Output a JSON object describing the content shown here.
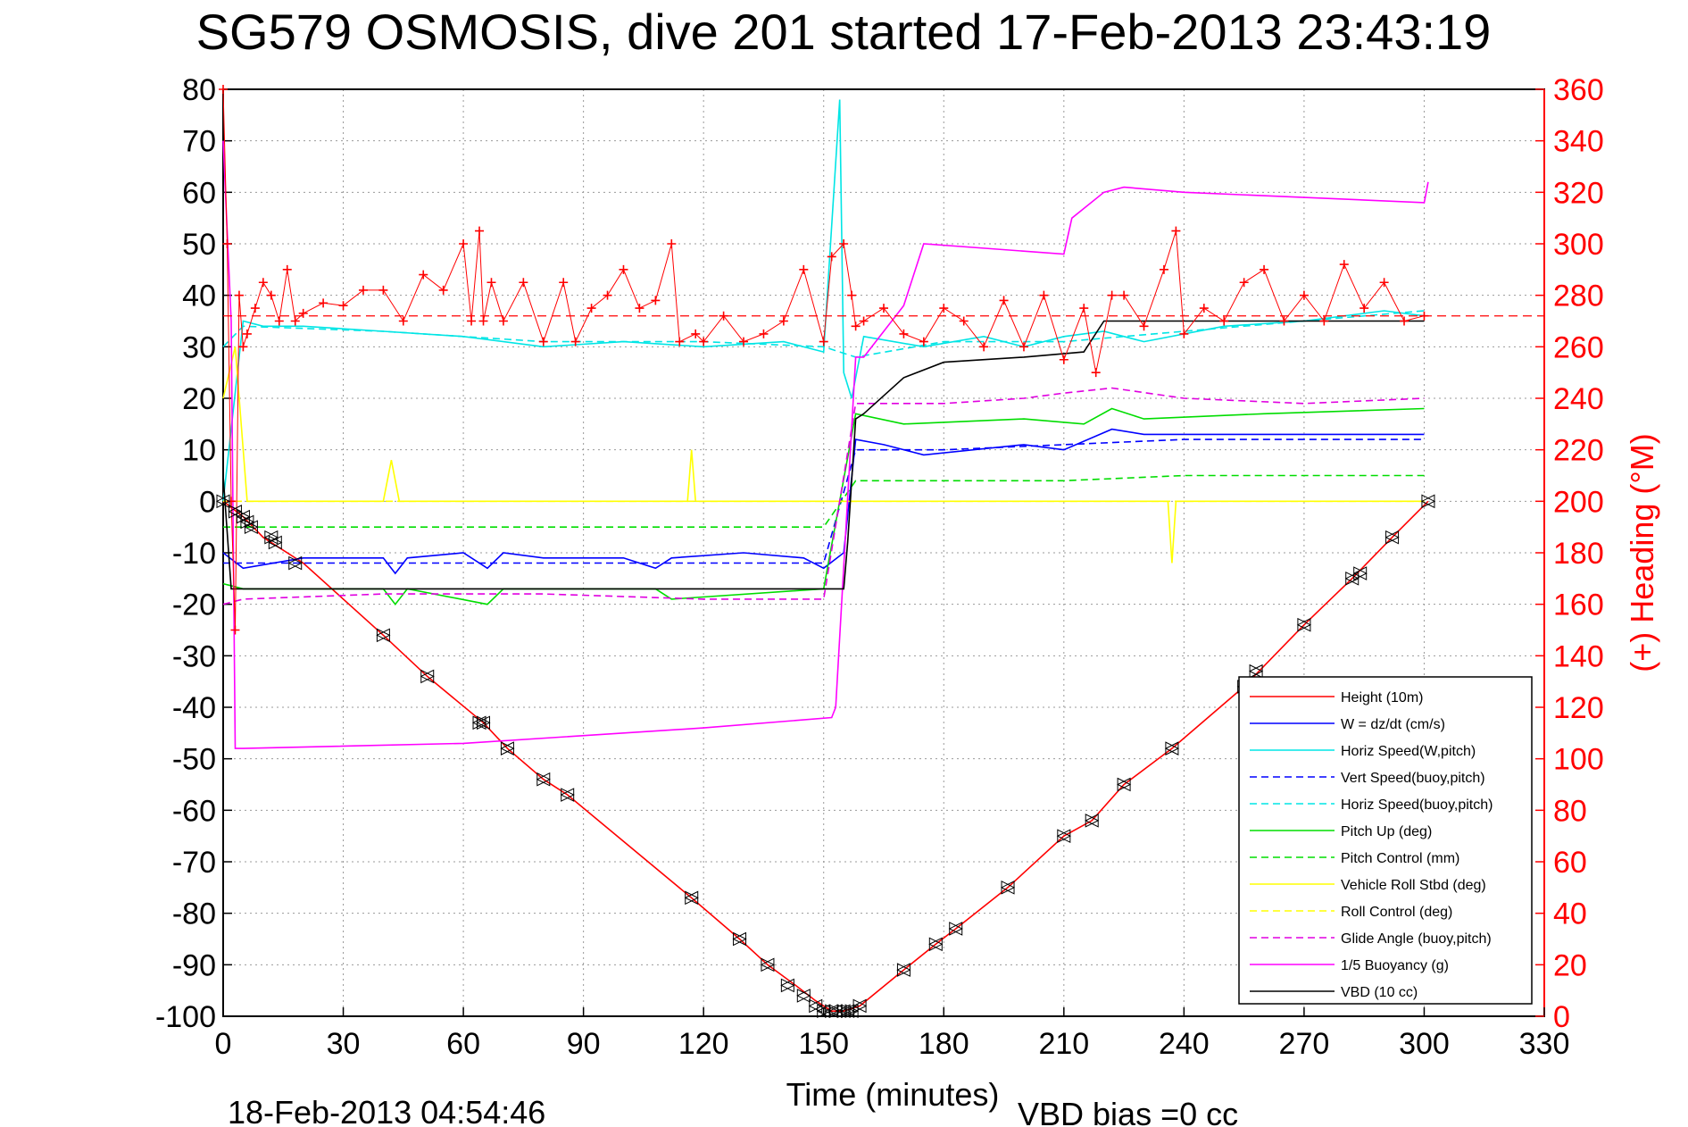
{
  "chart_data": {
    "type": "line",
    "title": "SG579 OSMOSIS, dive 201 started 17-Feb-2013 23:43:19",
    "xlabel": "Time (minutes)",
    "ylabel_right": "(+) Heading (°M)",
    "footer_left": "18-Feb-2013 04:54:46",
    "footer_right": "VBD bias =0 cc",
    "xlim": [
      0,
      330
    ],
    "ylim": [
      -100,
      80
    ],
    "ylim_right": [
      0,
      360
    ],
    "x_ticks": [
      "0",
      "30",
      "60",
      "90",
      "120",
      "150",
      "180",
      "210",
      "240",
      "270",
      "300",
      "330"
    ],
    "y_ticks": [
      "80",
      "70",
      "60",
      "50",
      "40",
      "30",
      "20",
      "10",
      "0",
      "-10",
      "-20",
      "-30",
      "-40",
      "-50",
      "-60",
      "-70",
      "-80",
      "-90",
      "-100"
    ],
    "y2_ticks": [
      "360",
      "340",
      "320",
      "300",
      "280",
      "260",
      "240",
      "220",
      "200",
      "180",
      "160",
      "140",
      "120",
      "100",
      "80",
      "60",
      "40",
      "20",
      "0"
    ],
    "grid": true,
    "legend_position": "bottom-right",
    "series": [
      {
        "name": "Height (10m)",
        "color": "#ff0000",
        "style": "solid",
        "x": [
          0,
          5,
          10,
          20,
          40,
          51,
          65,
          71,
          80,
          86,
          117,
          129,
          136,
          143,
          148,
          152,
          155,
          159,
          170,
          178,
          183,
          196,
          210,
          217,
          225,
          237,
          255,
          270,
          282,
          292,
          301
        ],
        "y": [
          0,
          -3,
          -7,
          -12,
          -26,
          -34,
          -43,
          -48,
          -54,
          -57,
          -77,
          -85,
          -90,
          -94,
          -97,
          -99,
          -99,
          -98,
          -91,
          -86,
          -83,
          -75,
          -65,
          -62,
          -55,
          -48,
          -36,
          -24,
          -15,
          -7,
          0
        ]
      },
      {
        "name": "W = dz/dt (cm/s)",
        "color": "#0000ff",
        "style": "solid",
        "x": [
          0,
          5,
          20,
          40,
          43,
          46,
          60,
          66,
          70,
          80,
          100,
          108,
          112,
          130,
          145,
          150,
          155,
          158,
          165,
          175,
          200,
          210,
          222,
          230,
          250,
          270,
          300
        ],
        "y": [
          -10,
          -13,
          -11,
          -11,
          -14,
          -11,
          -10,
          -13,
          -10,
          -11,
          -11,
          -13,
          -11,
          -10,
          -11,
          -13,
          -10,
          12,
          11,
          9,
          11,
          10,
          14,
          13,
          13,
          13,
          13
        ]
      },
      {
        "name": "Horiz Speed(W,pitch)",
        "color": "#00e5e5",
        "style": "solid",
        "x": [
          0,
          5,
          10,
          20,
          40,
          60,
          80,
          100,
          120,
          140,
          150,
          154,
          155,
          157,
          160,
          175,
          190,
          200,
          210,
          220,
          230,
          250,
          270,
          290,
          300
        ],
        "y": [
          0,
          35,
          34,
          34,
          33,
          32,
          30,
          31,
          30,
          31,
          29,
          78,
          25,
          20,
          32,
          30,
          32,
          30,
          32,
          33,
          31,
          34,
          35,
          37,
          36
        ]
      },
      {
        "name": "Vert Speed(buoy,pitch)",
        "color": "#0000ff",
        "style": "dashed",
        "x": [
          0,
          5,
          40,
          80,
          120,
          150,
          158,
          180,
          210,
          240,
          270,
          300
        ],
        "y": [
          -12,
          -12,
          -12,
          -12,
          -12,
          -12,
          10,
          10,
          11,
          12,
          12,
          12
        ]
      },
      {
        "name": "Horiz Speed(buoy,pitch)",
        "color": "#00e5e5",
        "style": "dashed",
        "x": [
          0,
          5,
          40,
          80,
          120,
          150,
          158,
          180,
          210,
          240,
          270,
          300
        ],
        "y": [
          30,
          34,
          33,
          31,
          31,
          30,
          28,
          31,
          31,
          33,
          35,
          37
        ]
      },
      {
        "name": "Pitch Up (deg)",
        "color": "#00dd00",
        "style": "solid",
        "x": [
          0,
          5,
          40,
          43,
          46,
          66,
          70,
          108,
          112,
          150,
          158,
          170,
          200,
          215,
          222,
          230,
          260,
          300
        ],
        "y": [
          -16,
          -17,
          -17,
          -20,
          -17,
          -20,
          -17,
          -17,
          -19,
          -17,
          17,
          15,
          16,
          15,
          18,
          16,
          17,
          18
        ]
      },
      {
        "name": "Pitch Control (mm)",
        "color": "#00dd00",
        "style": "dashed",
        "x": [
          0,
          5,
          50,
          100,
          150,
          158,
          180,
          210,
          240,
          270,
          300
        ],
        "y": [
          -5,
          -5,
          -5,
          -5,
          -5,
          4,
          4,
          4,
          5,
          5,
          5
        ]
      },
      {
        "name": "Vehicle Roll Stbd (deg)",
        "color": "#ffff00",
        "style": "solid",
        "x": [
          0,
          3,
          6,
          10,
          40,
          42,
          44,
          70,
          100,
          116,
          117,
          118,
          150,
          158,
          180,
          230,
          236,
          237,
          238,
          270,
          300
        ],
        "y": [
          20,
          30,
          0,
          0,
          0,
          8,
          0,
          0,
          0,
          0,
          10,
          0,
          0,
          0,
          0,
          0,
          0,
          -12,
          0,
          0,
          0
        ]
      },
      {
        "name": "Roll Control (deg)",
        "color": "#ffff00",
        "style": "dashed",
        "x": [
          0,
          10,
          50,
          100,
          150,
          158,
          200,
          250,
          300
        ],
        "y": [
          0,
          0,
          0,
          0,
          0,
          0,
          0,
          0,
          0
        ]
      },
      {
        "name": "Glide Angle (buoy,pitch)",
        "color": "#e000e0",
        "style": "dashed",
        "x": [
          0,
          5,
          40,
          80,
          120,
          150,
          158,
          180,
          200,
          210,
          222,
          240,
          270,
          300
        ],
        "y": [
          -20,
          -19,
          -18,
          -18,
          -19,
          -19,
          19,
          19,
          20,
          21,
          22,
          20,
          19,
          20
        ]
      },
      {
        "name": "1/5 Buoyancy (g)",
        "color": "#ff00ff",
        "style": "solid",
        "x": [
          0,
          2,
          3,
          5,
          60,
          120,
          152,
          153,
          158,
          160,
          170,
          175,
          210,
          212,
          220,
          225,
          240,
          300,
          301
        ],
        "y": [
          70,
          35,
          -48,
          -48,
          -47,
          -44,
          -42,
          -40,
          28,
          28,
          38,
          50,
          48,
          55,
          60,
          61,
          60,
          58,
          62
        ]
      },
      {
        "name": "VBD (10 cc)",
        "color": "#000000",
        "style": "solid",
        "x": [
          0,
          2,
          5,
          60,
          120,
          152,
          155,
          156,
          158,
          160,
          170,
          180,
          200,
          215,
          220,
          240,
          300
        ],
        "y": [
          5,
          -17,
          -17,
          -17,
          -17,
          -17,
          -17,
          -8,
          16,
          17,
          24,
          27,
          28,
          29,
          35,
          35,
          35
        ]
      }
    ],
    "heading_series": {
      "name": "(+) Heading",
      "color": "#ff0000",
      "marker": "+",
      "axis": "right",
      "x": [
        0,
        1,
        2,
        3,
        4,
        5,
        6,
        8,
        10,
        12,
        14,
        16,
        18,
        20,
        25,
        30,
        35,
        40,
        45,
        50,
        55,
        60,
        62,
        64,
        65,
        67,
        70,
        75,
        80,
        85,
        88,
        92,
        96,
        100,
        104,
        108,
        112,
        114,
        118,
        120,
        125,
        130,
        135,
        140,
        145,
        150,
        152,
        155,
        157,
        158,
        160,
        165,
        170,
        175,
        180,
        185,
        190,
        195,
        200,
        205,
        210,
        215,
        218,
        222,
        225,
        230,
        235,
        238,
        240,
        245,
        250,
        255,
        260,
        265,
        270,
        275,
        280,
        285,
        290,
        295,
        300
      ],
      "y": [
        360,
        300,
        200,
        150,
        280,
        260,
        265,
        275,
        285,
        280,
        270,
        290,
        270,
        273,
        277,
        276,
        282,
        282,
        270,
        288,
        282,
        300,
        270,
        305,
        270,
        285,
        270,
        285,
        262,
        285,
        262,
        275,
        280,
        290,
        275,
        278,
        300,
        262,
        265,
        262,
        272,
        262,
        265,
        270,
        290,
        262,
        295,
        300,
        280,
        268,
        270,
        275,
        265,
        262,
        275,
        270,
        260,
        278,
        260,
        280,
        255,
        275,
        250,
        280,
        280,
        268,
        290,
        305,
        265,
        275,
        270,
        285,
        290,
        270,
        280,
        270,
        292,
        275,
        285,
        270,
        272
      ]
    },
    "mean_heading": 272,
    "dive_markers": {
      "x": [
        0,
        3,
        5,
        6,
        7,
        12,
        13,
        18,
        40,
        51,
        64,
        65,
        71,
        80,
        86,
        117,
        129,
        136,
        141,
        145,
        148,
        150,
        152,
        153,
        155,
        156,
        157,
        159,
        170,
        178,
        183,
        196,
        210,
        217,
        225,
        237,
        255,
        258,
        270,
        282,
        284,
        292,
        301
      ],
      "y": [
        0,
        -2,
        -3,
        -4,
        -5,
        -7,
        -8,
        -12,
        -26,
        -34,
        -43,
        -43,
        -48,
        -54,
        -57,
        -77,
        -85,
        -90,
        -94,
        -96,
        -98,
        -99,
        -99,
        -99,
        -99,
        -99,
        -99,
        -98,
        -91,
        -86,
        -83,
        -75,
        -65,
        -62,
        -55,
        -48,
        -36,
        -33,
        -24,
        -15,
        -14,
        -7,
        0
      ]
    },
    "legend": [
      "Height (10m)",
      "W = dz/dt (cm/s)",
      "Horiz Speed(W,pitch)",
      "Vert Speed(buoy,pitch)",
      "Horiz Speed(buoy,pitch)",
      "Pitch Up (deg)",
      "Pitch Control (mm)",
      "Vehicle Roll Stbd (deg)",
      "Roll Control (deg)",
      "Glide Angle (buoy,pitch)",
      "1/5 Buoyancy (g)",
      "VBD (10 cc)"
    ]
  }
}
